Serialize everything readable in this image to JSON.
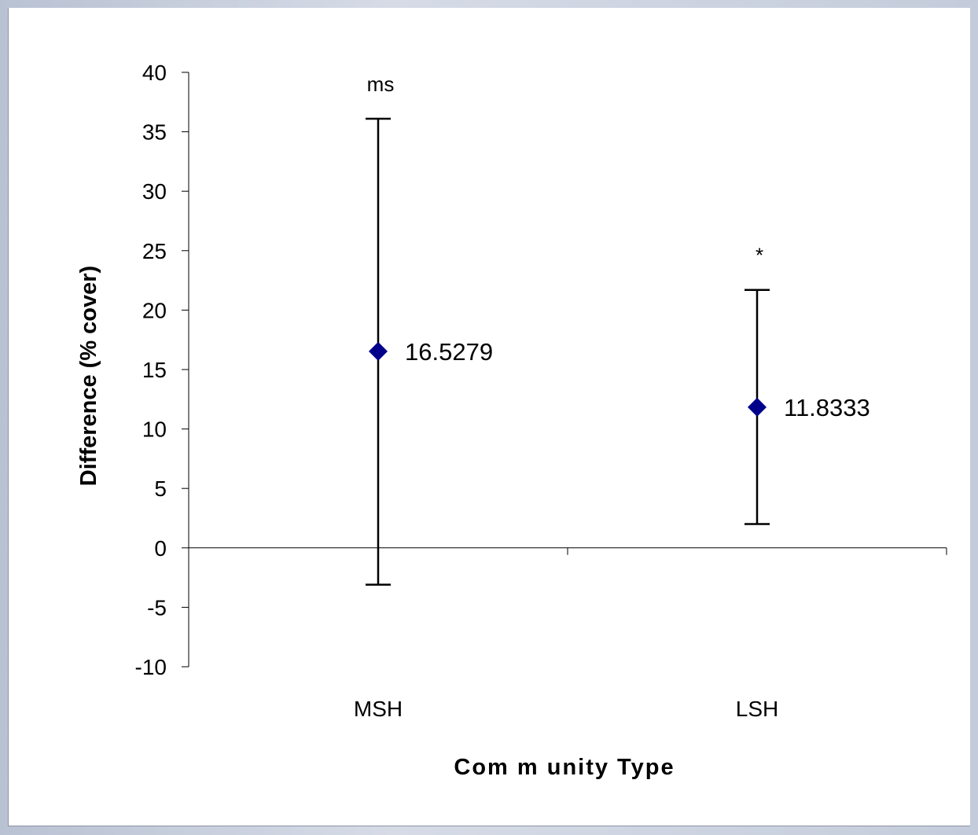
{
  "chart_data": {
    "type": "scatter",
    "title": "",
    "xlabel": "Com m unity Type",
    "ylabel": "Difference (% cover)",
    "categories": [
      "MSH",
      "LSH"
    ],
    "ylim": [
      -10,
      40
    ],
    "yticks": [
      -10,
      -5,
      0,
      5,
      10,
      15,
      20,
      25,
      30,
      35,
      40
    ],
    "grid": false,
    "legend": "none",
    "marker_color": "#00008b",
    "series": [
      {
        "values": [
          16.5279,
          11.8333
        ],
        "error_low": [
          -3.1,
          2.0
        ],
        "error_high": [
          36.1,
          21.7
        ],
        "data_labels": [
          "16.5279",
          "11.8333"
        ],
        "annotations": [
          "ms",
          "*"
        ]
      }
    ]
  }
}
